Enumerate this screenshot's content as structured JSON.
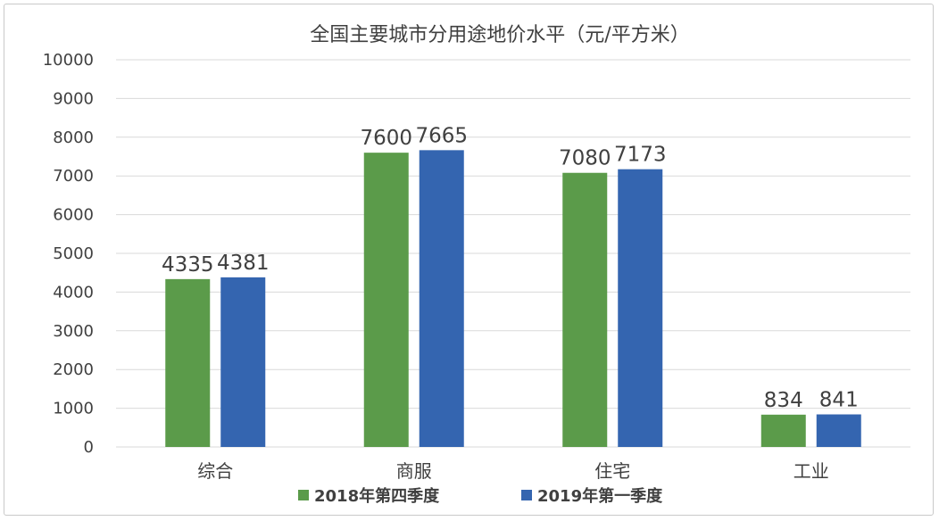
{
  "chart_data": {
    "type": "bar",
    "title": "全国主要城市分用途地价水平（元/平方米）",
    "categories": [
      "综合",
      "商服",
      "住宅",
      "工业"
    ],
    "series": [
      {
        "name": "2018年第四季度",
        "values": [
          4335,
          7600,
          7080,
          834
        ],
        "color": "#5b9b4a"
      },
      {
        "name": "2019年第一季度",
        "values": [
          4381,
          7665,
          7173,
          841
        ],
        "color": "#3465b0"
      }
    ],
    "ylim": [
      0,
      10000
    ],
    "yticks": [
      "0",
      "1000",
      "2000",
      "3000",
      "4000",
      "5000",
      "6000",
      "7000",
      "8000",
      "9000",
      "10000"
    ],
    "grid": true,
    "legend": "bottom"
  }
}
